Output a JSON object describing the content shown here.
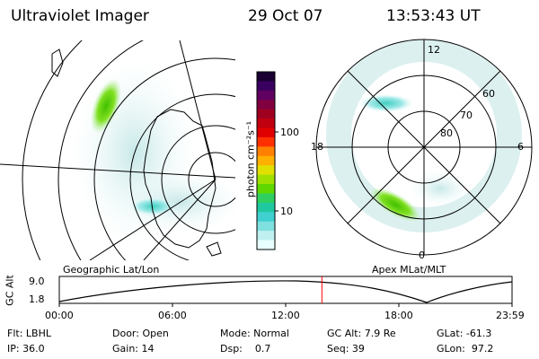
{
  "header": {
    "title": "Ultraviolet Imager",
    "date": "29 Oct 07",
    "time": "13:53:43 UT"
  },
  "left_panel": {
    "caption": "Geographic Lat/Lon"
  },
  "right_panel": {
    "caption": "Apex MLat/MLT",
    "mlt_labels": [
      "12",
      "18",
      "6",
      "0"
    ],
    "mlat_labels": [
      "60",
      "70",
      "80"
    ]
  },
  "colorbar": {
    "unit_label": "photon cm⁻²s⁻¹",
    "tick_labels": [
      "100",
      "10"
    ],
    "colors": [
      "#1a0033",
      "#3a0060",
      "#600060",
      "#800040",
      "#a00020",
      "#c00010",
      "#e00000",
      "#ff3000",
      "#ff8000",
      "#ffb000",
      "#e0e000",
      "#a0e000",
      "#60d800",
      "#30d060",
      "#20c8a0",
      "#40d0d0",
      "#80e0e0",
      "#c0f0f0",
      "#e8ffff"
    ]
  },
  "altitude_plot": {
    "ylabel": "GC Alt",
    "y_ticks": [
      "9.0",
      "1.8"
    ],
    "x_ticks": [
      "00:00",
      "06:00",
      "12:00",
      "18:00",
      "23:59"
    ],
    "current_time_fraction": 0.58,
    "marker_color": "#ff0000"
  },
  "status": {
    "filter": "Flt: LBHL",
    "ip": "IP: 36.0",
    "door": "Door: Open",
    "gain": "Gain: 14",
    "mode": "Mode: Normal",
    "dsp": "Dsp:    0.7",
    "gc_alt": "GC Alt: 7.9 Re",
    "seq": "Seq: 39",
    "glat": "GLat: -61.3",
    "glon": "GLon:  97.2"
  }
}
